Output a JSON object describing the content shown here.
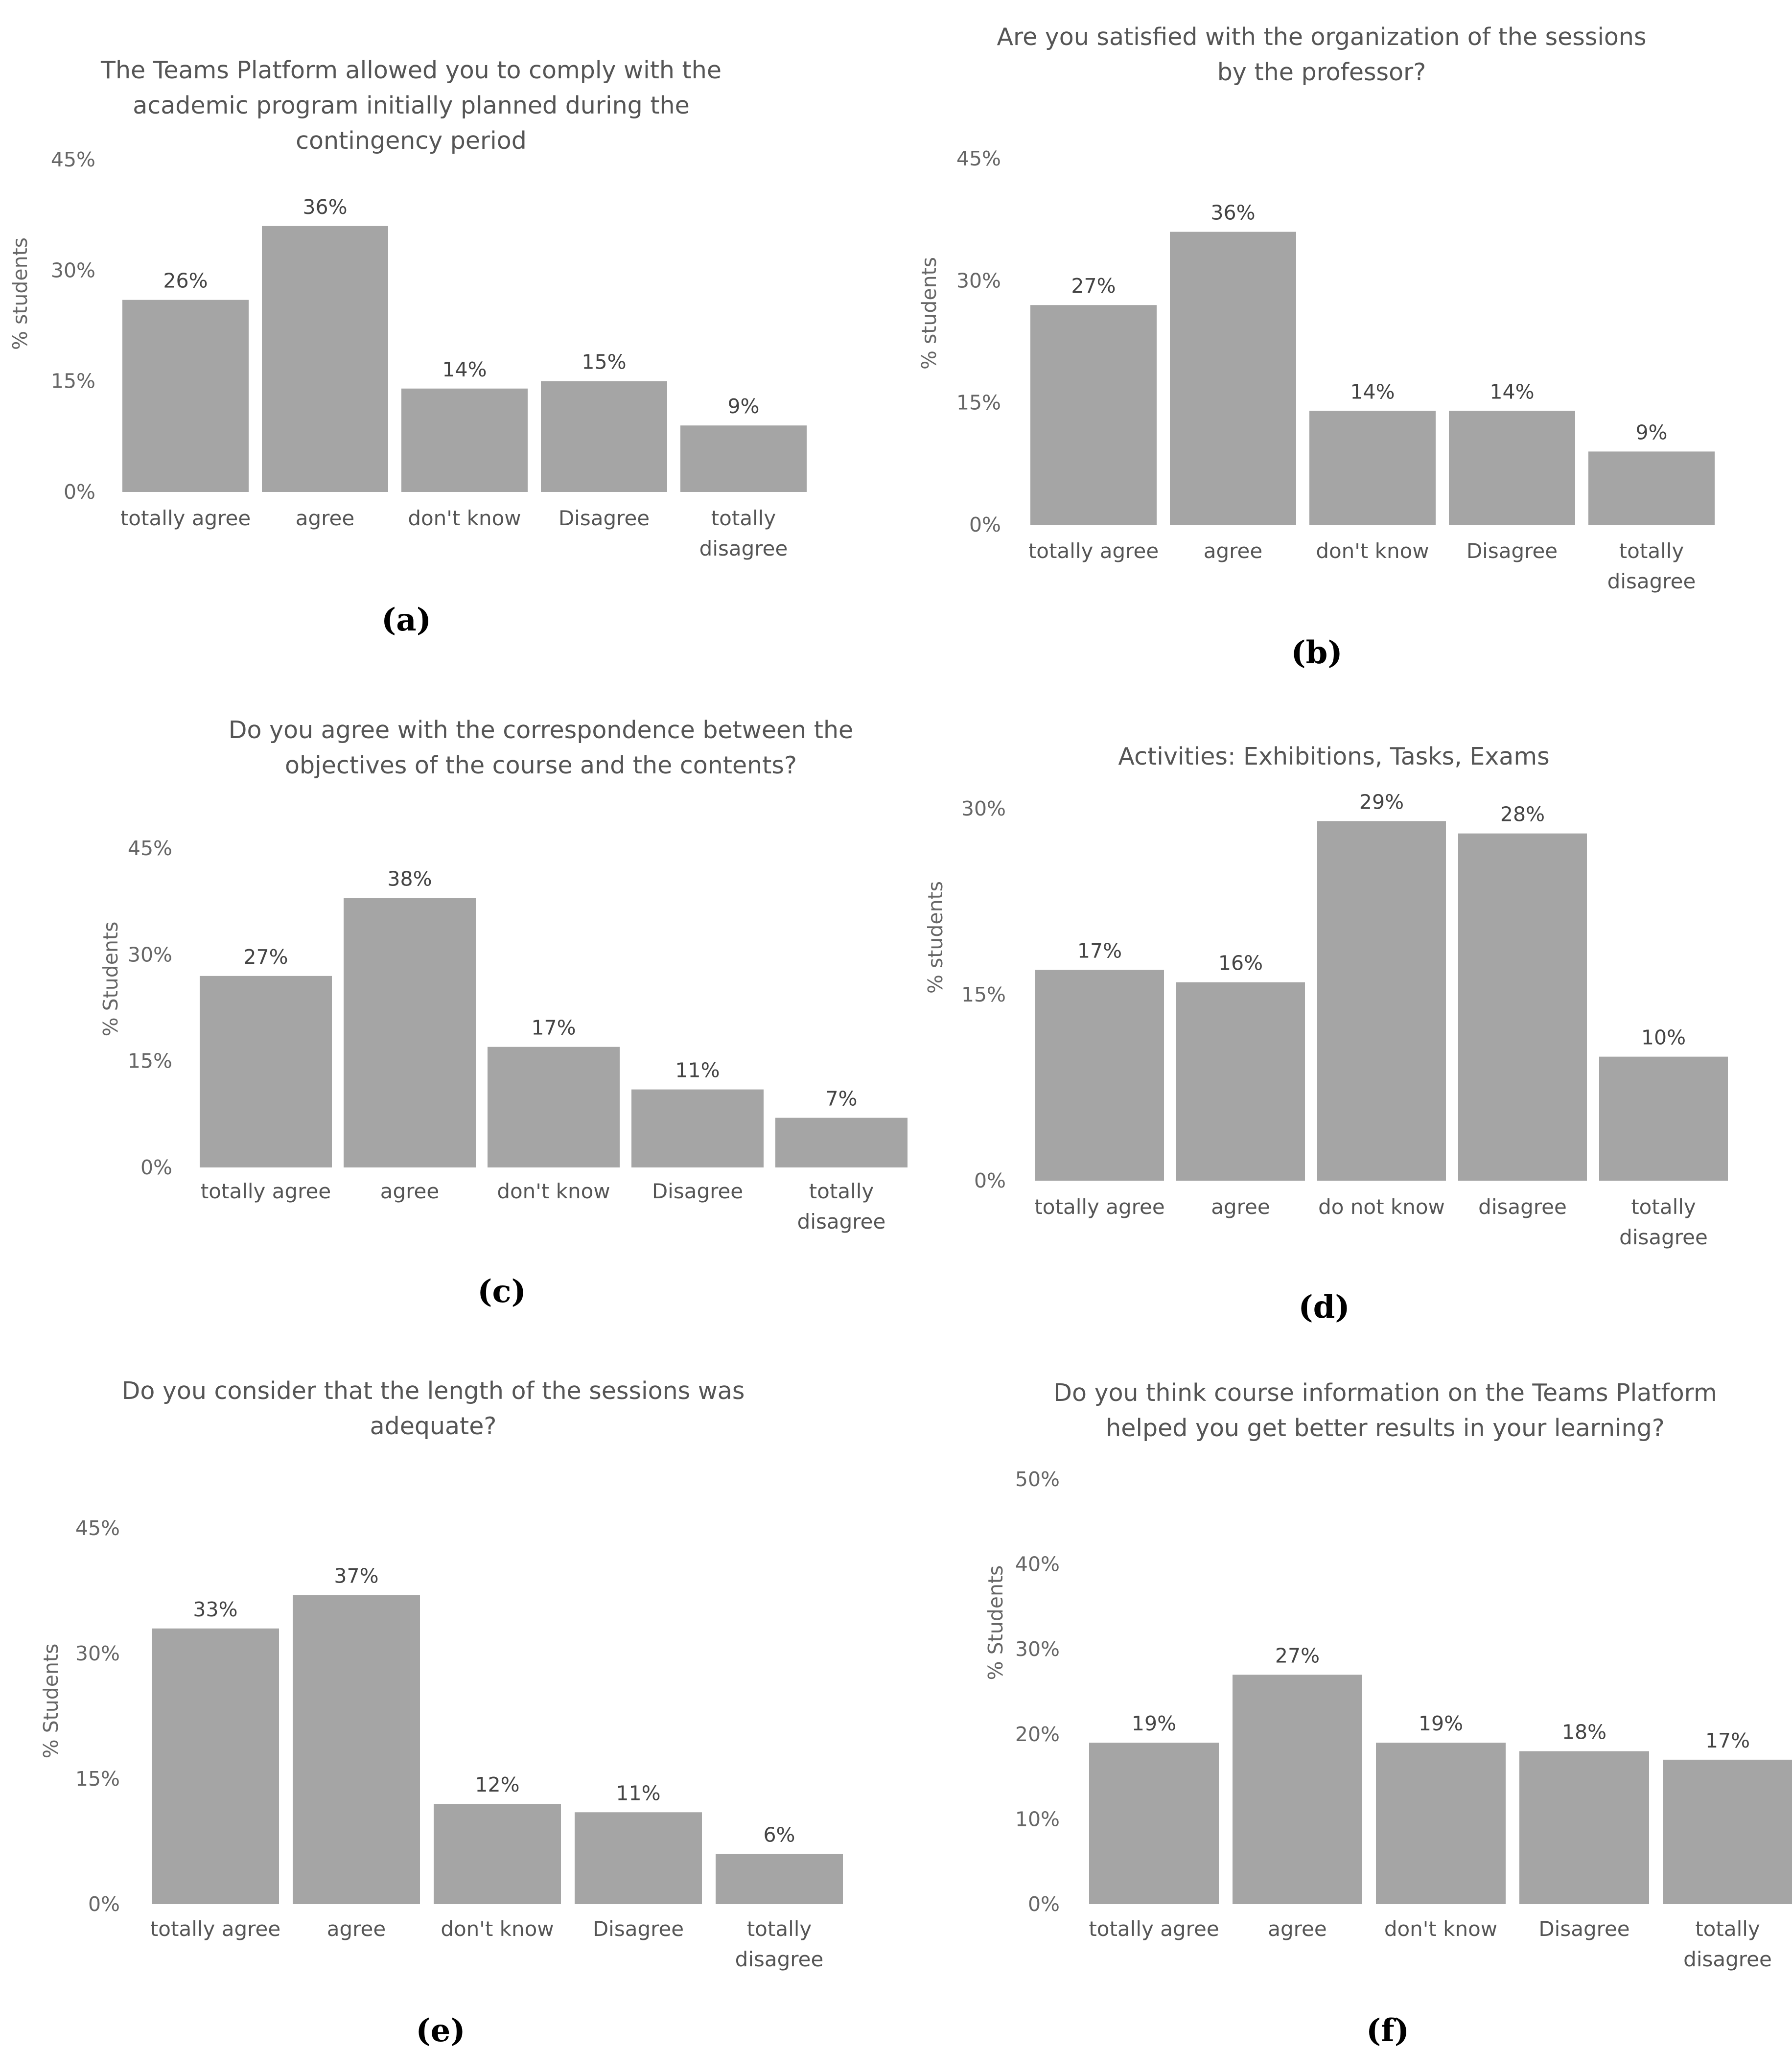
{
  "bar_color": "#a5a5a5",
  "chart_data": [
    {
      "type": "bar",
      "panel": "(a)",
      "title": [
        "The Teams Platform allowed you to comply with the",
        "academic program initially planned during the",
        "contingency period"
      ],
      "ylabel": "% students",
      "yticks": [
        "0%",
        "15%",
        "30%",
        "45%"
      ],
      "ylim": [
        0,
        45
      ],
      "categories": [
        [
          "totally agree"
        ],
        [
          "agree"
        ],
        [
          "don't know"
        ],
        [
          "Disagree"
        ],
        [
          "totally",
          "disagree"
        ]
      ],
      "values": [
        26,
        36,
        14,
        15,
        9
      ],
      "value_labels": [
        "26%",
        "36%",
        "14%",
        "15%",
        "9%"
      ]
    },
    {
      "type": "bar",
      "panel": "(b)",
      "title": [
        "Are you satisfied with the organization of the sessions",
        "by the professor?"
      ],
      "ylabel": "% students",
      "yticks": [
        "0%",
        "15%",
        "30%",
        "45%"
      ],
      "ylim": [
        0,
        45
      ],
      "categories": [
        [
          "totally agree"
        ],
        [
          "agree"
        ],
        [
          "don't know"
        ],
        [
          "Disagree"
        ],
        [
          "totally",
          "disagree"
        ]
      ],
      "values": [
        27,
        36,
        14,
        14,
        9
      ],
      "value_labels": [
        "27%",
        "36%",
        "14%",
        "14%",
        "9%"
      ]
    },
    {
      "type": "bar",
      "panel": "(c)",
      "title": [
        "Do you agree with the correspondence between the",
        "objectives of the course and the contents?"
      ],
      "ylabel": "% Students",
      "yticks": [
        "0%",
        "15%",
        "30%",
        "45%"
      ],
      "ylim": [
        0,
        45
      ],
      "categories": [
        [
          "totally agree"
        ],
        [
          "agree"
        ],
        [
          "don't know"
        ],
        [
          "Disagree"
        ],
        [
          "totally",
          "disagree"
        ]
      ],
      "values": [
        27,
        38,
        17,
        11,
        7
      ],
      "value_labels": [
        "27%",
        "38%",
        "17%",
        "11%",
        "7%"
      ]
    },
    {
      "type": "bar",
      "panel": "(d)",
      "title": [
        "Activities: Exhibitions, Tasks, Exams"
      ],
      "ylabel": "% students",
      "yticks": [
        "0%",
        "15%",
        "30%"
      ],
      "ylim": [
        0,
        30
      ],
      "categories": [
        [
          "totally agree"
        ],
        [
          "agree"
        ],
        [
          "do not know"
        ],
        [
          "disagree"
        ],
        [
          "totally",
          "disagree"
        ]
      ],
      "values": [
        17,
        16,
        29,
        28,
        10
      ],
      "value_labels": [
        "17%",
        "16%",
        "29%",
        "28%",
        "10%"
      ]
    },
    {
      "type": "bar",
      "panel": "(e)",
      "title": [
        "Do you consider that the length of the sessions was",
        "adequate?"
      ],
      "ylabel": "% Students",
      "yticks": [
        "0%",
        "15%",
        "30%",
        "45%"
      ],
      "ylim": [
        0,
        45
      ],
      "categories": [
        [
          "totally agree"
        ],
        [
          "agree"
        ],
        [
          "don't know"
        ],
        [
          "Disagree"
        ],
        [
          "totally",
          "disagree"
        ]
      ],
      "values": [
        33,
        37,
        12,
        11,
        6
      ],
      "value_labels": [
        "33%",
        "37%",
        "12%",
        "11%",
        "6%"
      ]
    },
    {
      "type": "bar",
      "panel": "(f)",
      "title": [
        "Do you think course information on the Teams Platform",
        "helped you get better results in your learning?"
      ],
      "ylabel": "% Students",
      "yticks": [
        "0%",
        "10%",
        "20%",
        "30%",
        "40%",
        "50%"
      ],
      "ylim": [
        0,
        50
      ],
      "categories": [
        [
          "totally agree"
        ],
        [
          "agree"
        ],
        [
          "don't know"
        ],
        [
          "Disagree"
        ],
        [
          "totally",
          "disagree"
        ]
      ],
      "values": [
        19,
        27,
        19,
        18,
        17
      ],
      "value_labels": [
        "19%",
        "27%",
        "19%",
        "18%",
        "17%"
      ]
    }
  ]
}
